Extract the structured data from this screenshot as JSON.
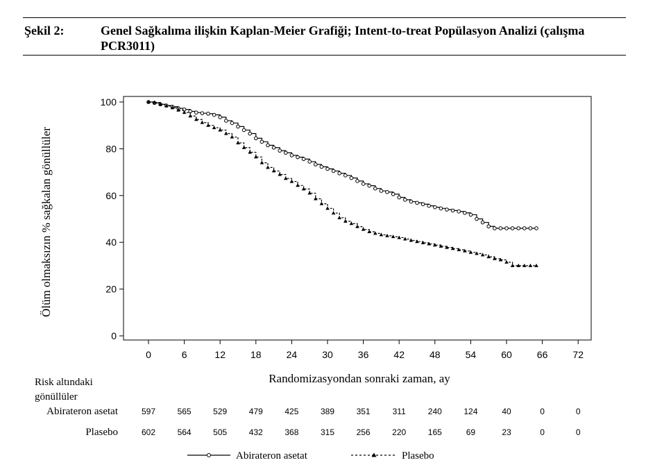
{
  "figure": {
    "label": "Şekil 2:",
    "caption": "Genel Sağkalıma ilişkin Kaplan-Meier Grafiği; Intent-to-treat Popülasyon Analizi (çalışma PCR3011)"
  },
  "chart_data": {
    "type": "line",
    "title": "",
    "xlabel": "Randomizasyondan sonraki zaman, ay",
    "ylabel": "Ölüm olmaksızın % sağkalan gönüllüler",
    "xlim": [
      0,
      72
    ],
    "ylim": [
      0,
      100
    ],
    "xticks": [
      "0",
      "6",
      "12",
      "18",
      "24",
      "30",
      "36",
      "42",
      "48",
      "54",
      "60",
      "66",
      "72"
    ],
    "yticks": [
      "0",
      "20",
      "40",
      "60",
      "80",
      "100"
    ],
    "grid": false,
    "legend_position": "bottom",
    "series": [
      {
        "name": "Abirateron asetat",
        "line_style": "solid",
        "marker": "circle",
        "x": [
          0,
          1,
          2,
          3,
          4,
          5,
          6,
          7,
          8,
          9,
          10,
          11,
          12,
          13,
          14,
          15,
          16,
          17,
          18,
          19,
          20,
          21,
          22,
          23,
          24,
          25,
          26,
          27,
          28,
          29,
          30,
          31,
          32,
          33,
          34,
          35,
          36,
          37,
          38,
          39,
          40,
          41,
          42,
          43,
          44,
          45,
          46,
          47,
          48,
          49,
          50,
          51,
          52,
          53,
          54,
          55,
          56,
          57,
          58,
          59,
          60,
          61,
          62,
          63,
          64,
          65
        ],
        "y": [
          100,
          99.6,
          99,
          98.5,
          98,
          97.3,
          96.8,
          96,
          95.5,
          95.2,
          95,
          94.5,
          93.5,
          92,
          91,
          89.5,
          88,
          86.5,
          84.5,
          83,
          81.5,
          80.5,
          79.2,
          78.3,
          77.2,
          76.4,
          75.6,
          74.5,
          73.3,
          72.3,
          71.4,
          70.5,
          69.5,
          68.6,
          67.5,
          66.2,
          65,
          64.2,
          63,
          62,
          61.5,
          60.6,
          59.2,
          58.2,
          57.4,
          56.9,
          56.3,
          55.6,
          55,
          54.5,
          54,
          53.6,
          53.2,
          52.6,
          51.8,
          50,
          48.5,
          46.8,
          46,
          46,
          46,
          46,
          46,
          46,
          46,
          46
        ]
      },
      {
        "name": "Plasebo",
        "line_style": "dashed",
        "marker": "triangle",
        "x": [
          0,
          1,
          2,
          3,
          4,
          5,
          6,
          7,
          8,
          9,
          10,
          11,
          12,
          13,
          14,
          15,
          16,
          17,
          18,
          19,
          20,
          21,
          22,
          23,
          24,
          25,
          26,
          27,
          28,
          29,
          30,
          31,
          32,
          33,
          34,
          35,
          36,
          37,
          38,
          39,
          40,
          41,
          42,
          43,
          44,
          45,
          46,
          47,
          48,
          49,
          50,
          51,
          52,
          53,
          54,
          55,
          56,
          57,
          58,
          59,
          60,
          61,
          62,
          63,
          64,
          65
        ],
        "y": [
          100,
          99.8,
          99,
          98.3,
          97.5,
          96.5,
          95.5,
          94,
          92.5,
          91.2,
          90,
          89,
          88,
          86.5,
          85,
          82.5,
          80.5,
          78.5,
          76.5,
          74,
          72,
          70.5,
          69,
          67.3,
          66,
          64.3,
          62.8,
          61,
          58.6,
          56.5,
          54.5,
          52.5,
          50.5,
          49,
          48,
          46.7,
          45.5,
          44.5,
          43.8,
          43.2,
          42.8,
          42.4,
          42,
          41.4,
          40.8,
          40.3,
          39.8,
          39.3,
          38.8,
          38.3,
          37.8,
          37.3,
          36.8,
          36.3,
          35.7,
          35.2,
          34.6,
          33.8,
          33,
          32.5,
          31.5,
          30,
          30,
          30,
          30,
          30
        ]
      }
    ]
  },
  "risk_table": {
    "title_line1": "Risk altındaki",
    "title_line2": "gönüllüler",
    "rows": [
      {
        "label": "Abirateron asetat",
        "values": [
          "597",
          "565",
          "529",
          "479",
          "425",
          "389",
          "351",
          "311",
          "240",
          "124",
          "40",
          "0",
          "0"
        ]
      },
      {
        "label": "Plasebo",
        "values": [
          "602",
          "564",
          "505",
          "432",
          "368",
          "315",
          "256",
          "220",
          "165",
          "69",
          "23",
          "0",
          "0"
        ]
      }
    ]
  },
  "legend": {
    "items": [
      {
        "label": "Abirateron asetat"
      },
      {
        "label": "Plasebo"
      }
    ]
  }
}
